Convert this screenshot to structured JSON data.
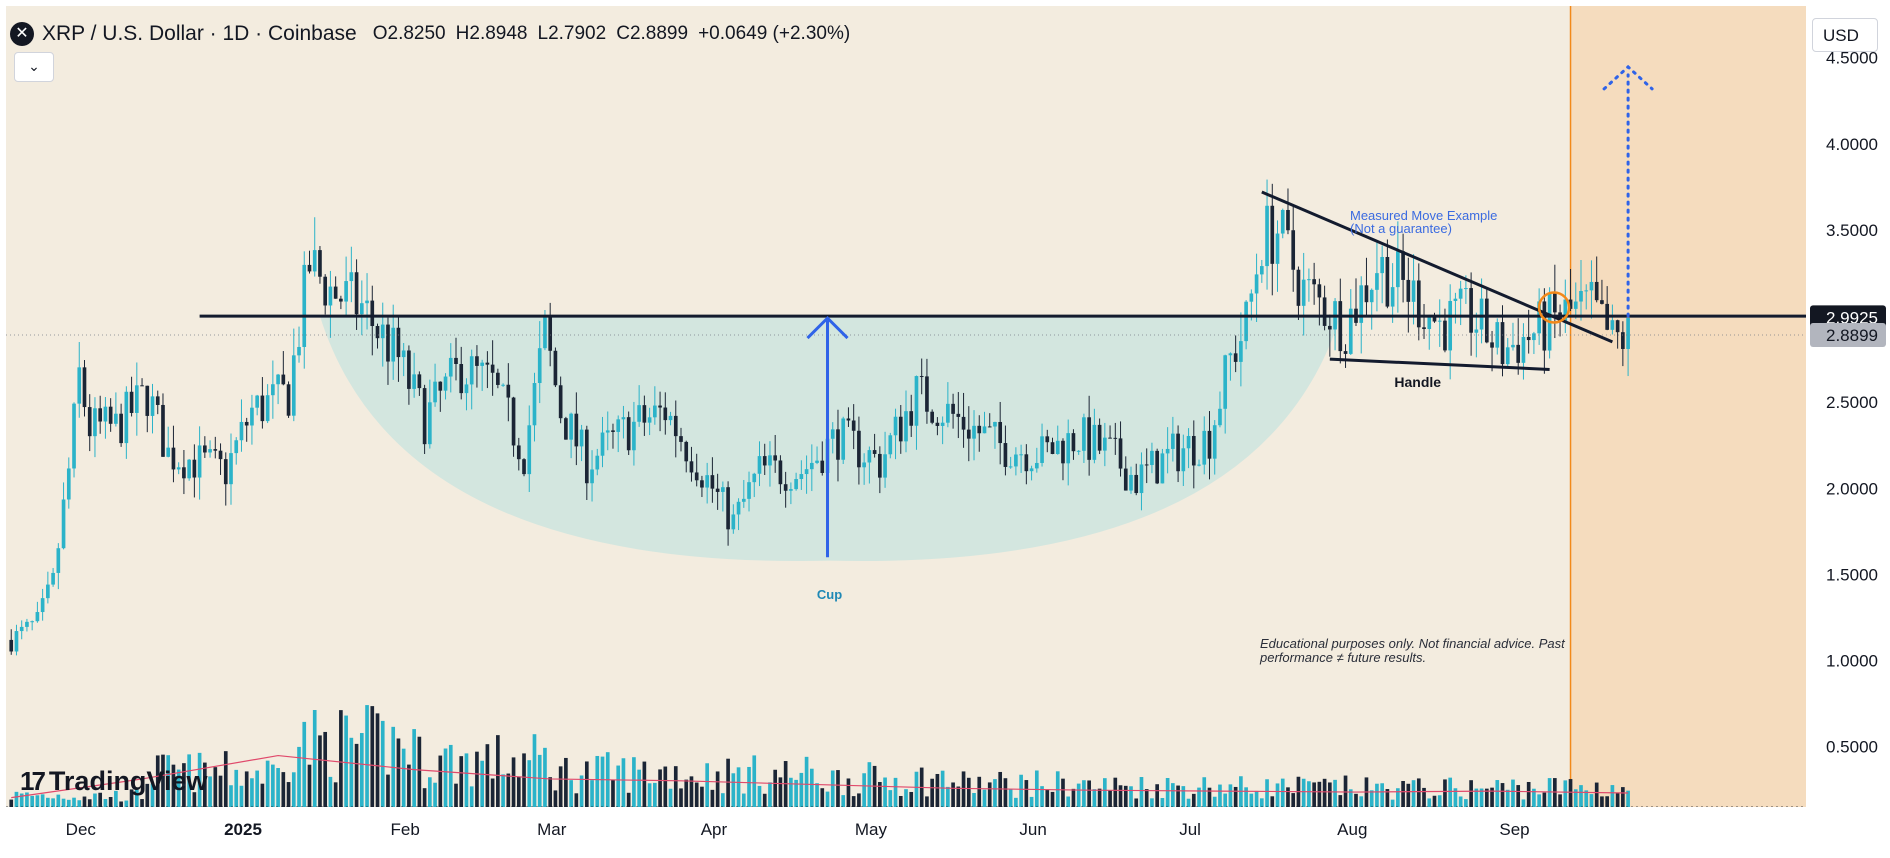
{
  "header": {
    "symbol_icon": "close-x-icon",
    "title": "XRP / U.S. Dollar · 1D · Coinbase",
    "ohlc": [
      {
        "label": "O",
        "value": "2.8250"
      },
      {
        "label": "H",
        "value": "2.8948"
      },
      {
        "label": "L",
        "value": "2.7902"
      },
      {
        "label": "C",
        "value": "2.8899"
      }
    ],
    "change": "+0.0649 (+2.30%)"
  },
  "collapse_icon": "chevron-down-icon",
  "currency": "USD",
  "logo_text": "TradingView",
  "colors": {
    "background": "#f3ecdf",
    "forecast_zone": "#f5dcbe",
    "cup_fill": "#cfe5df",
    "candle_up": "#2bb3c9",
    "candle_down": "#1b2535",
    "volume_ma": "#e0496b",
    "resistance": "#131b2e",
    "arrow_blue": "#2f63e8",
    "marker_orange": "#f2891a"
  },
  "chart_data": {
    "type": "candlestick",
    "x_axis": {
      "tick_labels": [
        "Dec",
        "2025",
        "Feb",
        "Mar",
        "Apr",
        "May",
        "Jun",
        "Jul",
        "Aug",
        "Sep"
      ],
      "range": [
        "2024-11-19",
        "2025-10-29"
      ]
    },
    "y_axis": {
      "tick_labels": [
        "4.5000",
        "4.0000",
        "3.5000",
        "3.0000",
        "2.5000",
        "2.0000",
        "1.5000",
        "1.0000",
        "0.5000"
      ],
      "range": [
        0.15,
        4.8
      ],
      "currency": "USD"
    },
    "price_labels": [
      {
        "value": 2.9925,
        "text": "2.9925"
      },
      {
        "value": 2.8899,
        "text": "2.8899"
      }
    ],
    "close_series": [
      {
        "date": "2024-11-20",
        "close": 1.12
      },
      {
        "date": "2024-11-25",
        "close": 1.22
      },
      {
        "date": "2024-11-28",
        "close": 1.45
      },
      {
        "date": "2024-12-01",
        "close": 2.1
      },
      {
        "date": "2024-12-03",
        "close": 2.65
      },
      {
        "date": "2024-12-05",
        "close": 2.35
      },
      {
        "date": "2024-12-10",
        "close": 2.35
      },
      {
        "date": "2024-12-16",
        "close": 2.55
      },
      {
        "date": "2024-12-20",
        "close": 2.2
      },
      {
        "date": "2024-12-26",
        "close": 2.15
      },
      {
        "date": "2024-12-31",
        "close": 2.1
      },
      {
        "date": "2025-01-05",
        "close": 2.45
      },
      {
        "date": "2025-01-12",
        "close": 2.55
      },
      {
        "date": "2025-01-16",
        "close": 3.3
      },
      {
        "date": "2025-01-20",
        "close": 3.15
      },
      {
        "date": "2025-01-26",
        "close": 3.05
      },
      {
        "date": "2025-02-02",
        "close": 2.75
      },
      {
        "date": "2025-02-07",
        "close": 2.4
      },
      {
        "date": "2025-02-14",
        "close": 2.7
      },
      {
        "date": "2025-02-20",
        "close": 2.6
      },
      {
        "date": "2025-02-26",
        "close": 2.2
      },
      {
        "date": "2025-03-02",
        "close": 2.9
      },
      {
        "date": "2025-03-05",
        "close": 2.45
      },
      {
        "date": "2025-03-10",
        "close": 2.15
      },
      {
        "date": "2025-03-18",
        "close": 2.35
      },
      {
        "date": "2025-03-25",
        "close": 2.45
      },
      {
        "date": "2025-04-01",
        "close": 2.1
      },
      {
        "date": "2025-04-07",
        "close": 1.8
      },
      {
        "date": "2025-04-12",
        "close": 2.1
      },
      {
        "date": "2025-04-20",
        "close": 2.1
      },
      {
        "date": "2025-04-27",
        "close": 2.3
      },
      {
        "date": "2025-05-05",
        "close": 2.15
      },
      {
        "date": "2025-05-12",
        "close": 2.55
      },
      {
        "date": "2025-05-20",
        "close": 2.4
      },
      {
        "date": "2025-05-28",
        "close": 2.25
      },
      {
        "date": "2025-06-05",
        "close": 2.2
      },
      {
        "date": "2025-06-12",
        "close": 2.3
      },
      {
        "date": "2025-06-18",
        "close": 2.2
      },
      {
        "date": "2025-06-23",
        "close": 2.05
      },
      {
        "date": "2025-06-30",
        "close": 2.2
      },
      {
        "date": "2025-07-07",
        "close": 2.3
      },
      {
        "date": "2025-07-11",
        "close": 2.75
      },
      {
        "date": "2025-07-14",
        "close": 2.95
      },
      {
        "date": "2025-07-17",
        "close": 3.45
      },
      {
        "date": "2025-07-20",
        "close": 3.5
      },
      {
        "date": "2025-07-25",
        "close": 3.15
      },
      {
        "date": "2025-08-02",
        "close": 2.95
      },
      {
        "date": "2025-08-08",
        "close": 3.3
      },
      {
        "date": "2025-08-14",
        "close": 3.15
      },
      {
        "date": "2025-08-20",
        "close": 2.95
      },
      {
        "date": "2025-08-26",
        "close": 3.0
      },
      {
        "date": "2025-09-01",
        "close": 2.8
      },
      {
        "date": "2025-09-07",
        "close": 2.9
      },
      {
        "date": "2025-09-12",
        "close": 3.0
      },
      {
        "date": "2025-09-18",
        "close": 3.05
      },
      {
        "date": "2025-09-22",
        "close": 2.85
      },
      {
        "date": "2025-09-25",
        "close": 2.88
      }
    ],
    "volume_series": {
      "note": "daily volume bars with a moving average line (pink), scale unlabeled",
      "ma_levels": [
        0.1,
        0.3,
        0.55,
        0.4,
        0.3,
        0.28,
        0.24,
        0.2,
        0.18,
        0.17,
        0.16,
        0.17,
        0.15
      ]
    },
    "annotations": {
      "resistance": {
        "value": 3.0,
        "from": "2024-12-26",
        "to": "2025-10-29"
      },
      "cup": {
        "label": "Cup",
        "left": "2025-01-18",
        "right": "2025-08-01",
        "rim": 3.0,
        "bottom": 1.58
      },
      "cup_arrow": {
        "date": "2025-04-25",
        "from": 1.6,
        "to": 3.0
      },
      "handle": {
        "label": "Handle",
        "upper": [
          {
            "date": "2025-07-17",
            "value": 3.72
          },
          {
            "date": "2025-09-22",
            "value": 2.85
          }
        ],
        "lower": [
          {
            "date": "2025-07-30",
            "value": 2.75
          },
          {
            "date": "2025-09-10",
            "value": 2.69
          }
        ]
      },
      "breakout_marker": {
        "date": "2025-09-12",
        "value": 3.05
      },
      "measured_move": {
        "label": "Measured Move Example",
        "sublabel": "(Not a guarantee)",
        "date": "2025-09-25",
        "from": 3.0,
        "to": 4.4
      },
      "vertical_marker": {
        "date": "2025-09-14"
      },
      "forecast_zone_from": "2025-09-14",
      "disclaimer": "Educational purposes only. Not financial advice. Past performance ≠ future results."
    }
  }
}
